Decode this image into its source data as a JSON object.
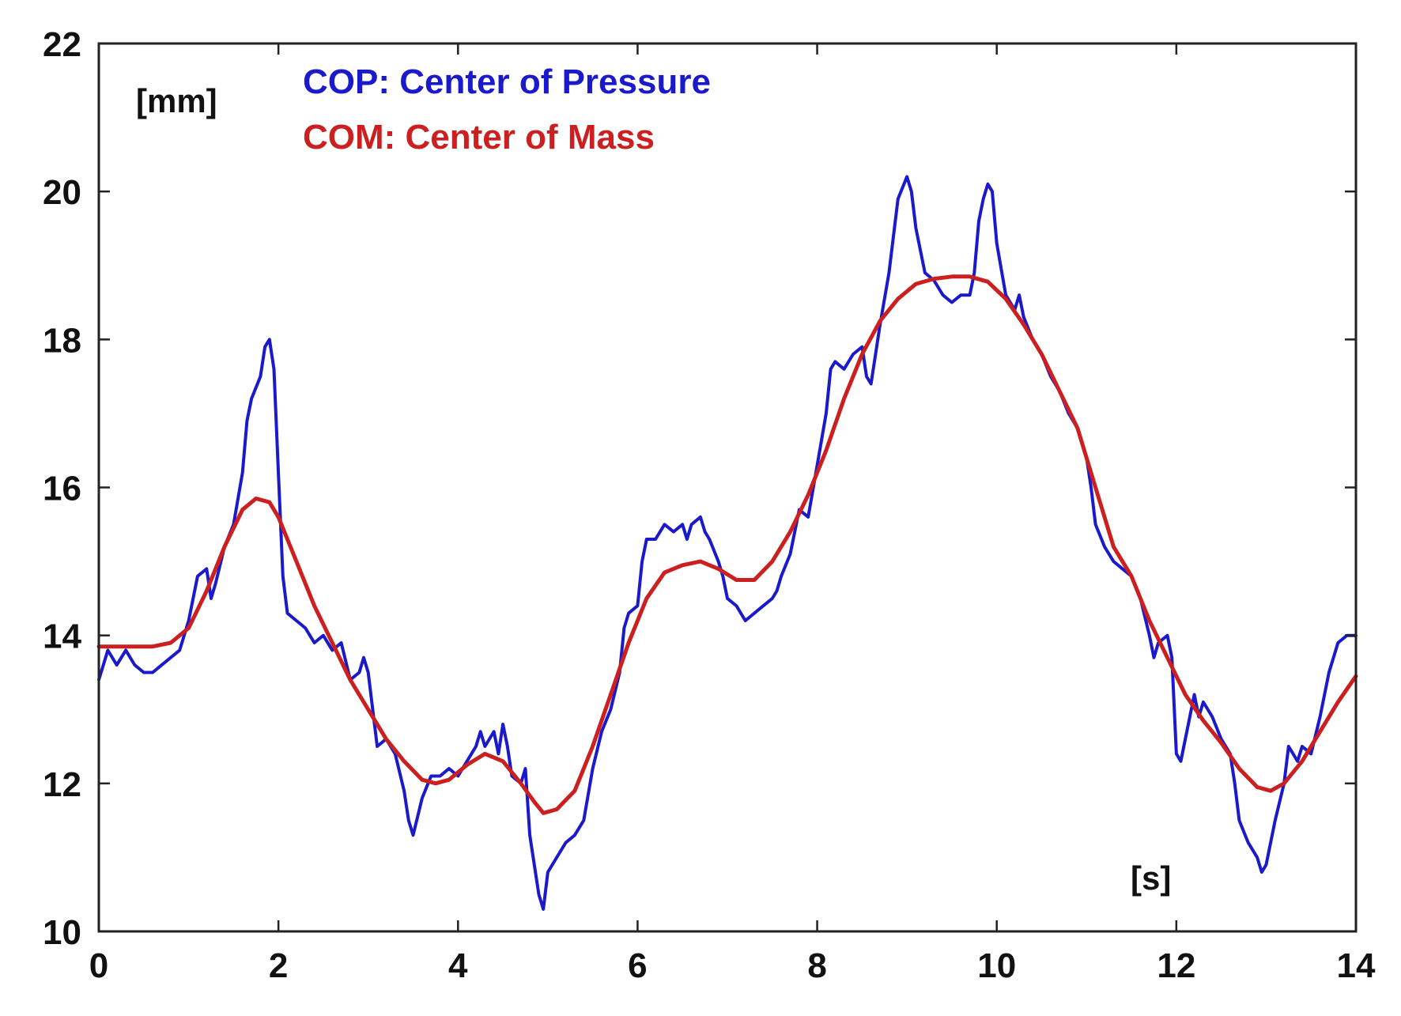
{
  "chart_data": {
    "type": "line",
    "title": "",
    "xlabel": "[s]",
    "ylabel": "[mm]",
    "xlim": [
      0,
      14
    ],
    "ylim": [
      10,
      22
    ],
    "xticks": [
      0,
      2,
      4,
      6,
      8,
      10,
      12,
      14
    ],
    "yticks": [
      10,
      12,
      14,
      16,
      18,
      20,
      22
    ],
    "grid": false,
    "legend_placement": "top-left",
    "series": [
      {
        "name": "COP: Center of Pressure",
        "color": "#1a1acc",
        "points": [
          [
            0.0,
            13.4
          ],
          [
            0.1,
            13.8
          ],
          [
            0.2,
            13.6
          ],
          [
            0.3,
            13.8
          ],
          [
            0.4,
            13.6
          ],
          [
            0.5,
            13.5
          ],
          [
            0.6,
            13.5
          ],
          [
            0.7,
            13.6
          ],
          [
            0.8,
            13.7
          ],
          [
            0.9,
            13.8
          ],
          [
            1.0,
            14.2
          ],
          [
            1.1,
            14.8
          ],
          [
            1.2,
            14.9
          ],
          [
            1.25,
            14.5
          ],
          [
            1.3,
            14.7
          ],
          [
            1.4,
            15.2
          ],
          [
            1.5,
            15.5
          ],
          [
            1.6,
            16.2
          ],
          [
            1.65,
            16.9
          ],
          [
            1.7,
            17.2
          ],
          [
            1.8,
            17.5
          ],
          [
            1.85,
            17.9
          ],
          [
            1.9,
            18.0
          ],
          [
            1.95,
            17.6
          ],
          [
            2.0,
            16.2
          ],
          [
            2.05,
            14.8
          ],
          [
            2.1,
            14.3
          ],
          [
            2.2,
            14.2
          ],
          [
            2.3,
            14.1
          ],
          [
            2.4,
            13.9
          ],
          [
            2.5,
            14.0
          ],
          [
            2.6,
            13.8
          ],
          [
            2.7,
            13.9
          ],
          [
            2.8,
            13.4
          ],
          [
            2.9,
            13.5
          ],
          [
            2.95,
            13.7
          ],
          [
            3.0,
            13.5
          ],
          [
            3.05,
            13.0
          ],
          [
            3.1,
            12.5
          ],
          [
            3.2,
            12.6
          ],
          [
            3.3,
            12.4
          ],
          [
            3.4,
            11.9
          ],
          [
            3.45,
            11.5
          ],
          [
            3.5,
            11.3
          ],
          [
            3.6,
            11.8
          ],
          [
            3.7,
            12.1
          ],
          [
            3.8,
            12.1
          ],
          [
            3.9,
            12.2
          ],
          [
            4.0,
            12.1
          ],
          [
            4.1,
            12.3
          ],
          [
            4.2,
            12.5
          ],
          [
            4.25,
            12.7
          ],
          [
            4.3,
            12.5
          ],
          [
            4.4,
            12.7
          ],
          [
            4.45,
            12.4
          ],
          [
            4.5,
            12.8
          ],
          [
            4.55,
            12.5
          ],
          [
            4.6,
            12.1
          ],
          [
            4.7,
            12.0
          ],
          [
            4.75,
            12.2
          ],
          [
            4.8,
            11.3
          ],
          [
            4.85,
            10.9
          ],
          [
            4.9,
            10.5
          ],
          [
            4.95,
            10.3
          ],
          [
            5.0,
            10.8
          ],
          [
            5.1,
            11.0
          ],
          [
            5.2,
            11.2
          ],
          [
            5.3,
            11.3
          ],
          [
            5.4,
            11.5
          ],
          [
            5.5,
            12.2
          ],
          [
            5.6,
            12.7
          ],
          [
            5.7,
            13.0
          ],
          [
            5.8,
            13.5
          ],
          [
            5.85,
            14.1
          ],
          [
            5.9,
            14.3
          ],
          [
            6.0,
            14.4
          ],
          [
            6.05,
            15.0
          ],
          [
            6.1,
            15.3
          ],
          [
            6.2,
            15.3
          ],
          [
            6.3,
            15.5
          ],
          [
            6.4,
            15.4
          ],
          [
            6.5,
            15.5
          ],
          [
            6.55,
            15.3
          ],
          [
            6.6,
            15.5
          ],
          [
            6.7,
            15.6
          ],
          [
            6.75,
            15.4
          ],
          [
            6.8,
            15.3
          ],
          [
            6.9,
            15.0
          ],
          [
            6.95,
            14.8
          ],
          [
            7.0,
            14.5
          ],
          [
            7.1,
            14.4
          ],
          [
            7.2,
            14.2
          ],
          [
            7.3,
            14.3
          ],
          [
            7.4,
            14.4
          ],
          [
            7.5,
            14.5
          ],
          [
            7.55,
            14.6
          ],
          [
            7.6,
            14.8
          ],
          [
            7.7,
            15.1
          ],
          [
            7.75,
            15.4
          ],
          [
            7.8,
            15.7
          ],
          [
            7.9,
            15.6
          ],
          [
            8.0,
            16.3
          ],
          [
            8.1,
            17.0
          ],
          [
            8.15,
            17.6
          ],
          [
            8.2,
            17.7
          ],
          [
            8.3,
            17.6
          ],
          [
            8.4,
            17.8
          ],
          [
            8.5,
            17.9
          ],
          [
            8.55,
            17.5
          ],
          [
            8.6,
            17.4
          ],
          [
            8.7,
            18.2
          ],
          [
            8.8,
            18.9
          ],
          [
            8.85,
            19.4
          ],
          [
            8.9,
            19.9
          ],
          [
            9.0,
            20.2
          ],
          [
            9.05,
            20.0
          ],
          [
            9.1,
            19.5
          ],
          [
            9.2,
            18.9
          ],
          [
            9.3,
            18.8
          ],
          [
            9.4,
            18.6
          ],
          [
            9.5,
            18.5
          ],
          [
            9.6,
            18.6
          ],
          [
            9.7,
            18.6
          ],
          [
            9.75,
            18.9
          ],
          [
            9.8,
            19.6
          ],
          [
            9.85,
            19.9
          ],
          [
            9.9,
            20.1
          ],
          [
            9.95,
            20.0
          ],
          [
            10.0,
            19.3
          ],
          [
            10.1,
            18.6
          ],
          [
            10.2,
            18.4
          ],
          [
            10.25,
            18.6
          ],
          [
            10.3,
            18.3
          ],
          [
            10.4,
            18.0
          ],
          [
            10.5,
            17.8
          ],
          [
            10.6,
            17.5
          ],
          [
            10.7,
            17.3
          ],
          [
            10.8,
            17.0
          ],
          [
            10.9,
            16.8
          ],
          [
            11.0,
            16.4
          ],
          [
            11.05,
            16.0
          ],
          [
            11.1,
            15.5
          ],
          [
            11.2,
            15.2
          ],
          [
            11.3,
            15.0
          ],
          [
            11.4,
            14.9
          ],
          [
            11.5,
            14.8
          ],
          [
            11.6,
            14.5
          ],
          [
            11.7,
            14.0
          ],
          [
            11.75,
            13.7
          ],
          [
            11.8,
            13.9
          ],
          [
            11.9,
            14.0
          ],
          [
            11.95,
            13.7
          ],
          [
            12.0,
            12.4
          ],
          [
            12.05,
            12.3
          ],
          [
            12.1,
            12.6
          ],
          [
            12.15,
            12.9
          ],
          [
            12.2,
            13.2
          ],
          [
            12.25,
            12.9
          ],
          [
            12.3,
            13.1
          ],
          [
            12.4,
            12.9
          ],
          [
            12.5,
            12.6
          ],
          [
            12.6,
            12.4
          ],
          [
            12.65,
            12.0
          ],
          [
            12.7,
            11.5
          ],
          [
            12.8,
            11.2
          ],
          [
            12.9,
            11.0
          ],
          [
            12.95,
            10.8
          ],
          [
            13.0,
            10.9
          ],
          [
            13.1,
            11.5
          ],
          [
            13.2,
            12.0
          ],
          [
            13.25,
            12.5
          ],
          [
            13.3,
            12.4
          ],
          [
            13.35,
            12.3
          ],
          [
            13.4,
            12.5
          ],
          [
            13.5,
            12.4
          ],
          [
            13.6,
            12.9
          ],
          [
            13.7,
            13.5
          ],
          [
            13.8,
            13.9
          ],
          [
            13.9,
            14.0
          ],
          [
            14.0,
            14.0
          ]
        ]
      },
      {
        "name": "COM: Center of Mass",
        "color": "#cc1f1f",
        "points": [
          [
            0.0,
            13.85
          ],
          [
            0.3,
            13.85
          ],
          [
            0.6,
            13.85
          ],
          [
            0.8,
            13.9
          ],
          [
            1.0,
            14.1
          ],
          [
            1.2,
            14.6
          ],
          [
            1.4,
            15.2
          ],
          [
            1.6,
            15.7
          ],
          [
            1.75,
            15.85
          ],
          [
            1.9,
            15.8
          ],
          [
            2.0,
            15.6
          ],
          [
            2.2,
            15.0
          ],
          [
            2.4,
            14.4
          ],
          [
            2.6,
            13.9
          ],
          [
            2.8,
            13.4
          ],
          [
            3.0,
            13.0
          ],
          [
            3.2,
            12.6
          ],
          [
            3.4,
            12.3
          ],
          [
            3.6,
            12.05
          ],
          [
            3.75,
            12.0
          ],
          [
            3.9,
            12.05
          ],
          [
            4.1,
            12.25
          ],
          [
            4.3,
            12.4
          ],
          [
            4.5,
            12.3
          ],
          [
            4.7,
            12.0
          ],
          [
            4.85,
            11.75
          ],
          [
            4.95,
            11.6
          ],
          [
            5.1,
            11.65
          ],
          [
            5.3,
            11.9
          ],
          [
            5.5,
            12.5
          ],
          [
            5.7,
            13.2
          ],
          [
            5.9,
            13.9
          ],
          [
            6.1,
            14.5
          ],
          [
            6.3,
            14.85
          ],
          [
            6.5,
            14.95
          ],
          [
            6.7,
            15.0
          ],
          [
            6.9,
            14.9
          ],
          [
            7.1,
            14.75
          ],
          [
            7.3,
            14.75
          ],
          [
            7.5,
            15.0
          ],
          [
            7.7,
            15.4
          ],
          [
            7.9,
            15.9
          ],
          [
            8.1,
            16.5
          ],
          [
            8.3,
            17.2
          ],
          [
            8.5,
            17.8
          ],
          [
            8.7,
            18.25
          ],
          [
            8.9,
            18.55
          ],
          [
            9.1,
            18.75
          ],
          [
            9.3,
            18.82
          ],
          [
            9.5,
            18.85
          ],
          [
            9.7,
            18.85
          ],
          [
            9.9,
            18.78
          ],
          [
            10.1,
            18.55
          ],
          [
            10.3,
            18.2
          ],
          [
            10.5,
            17.8
          ],
          [
            10.7,
            17.3
          ],
          [
            10.9,
            16.8
          ],
          [
            11.1,
            16.0
          ],
          [
            11.3,
            15.2
          ],
          [
            11.5,
            14.8
          ],
          [
            11.7,
            14.2
          ],
          [
            11.9,
            13.7
          ],
          [
            12.1,
            13.2
          ],
          [
            12.3,
            12.85
          ],
          [
            12.5,
            12.55
          ],
          [
            12.7,
            12.2
          ],
          [
            12.9,
            11.95
          ],
          [
            13.05,
            11.9
          ],
          [
            13.2,
            12.0
          ],
          [
            13.4,
            12.3
          ],
          [
            13.6,
            12.7
          ],
          [
            13.8,
            13.1
          ],
          [
            14.0,
            13.45
          ]
        ]
      }
    ]
  }
}
